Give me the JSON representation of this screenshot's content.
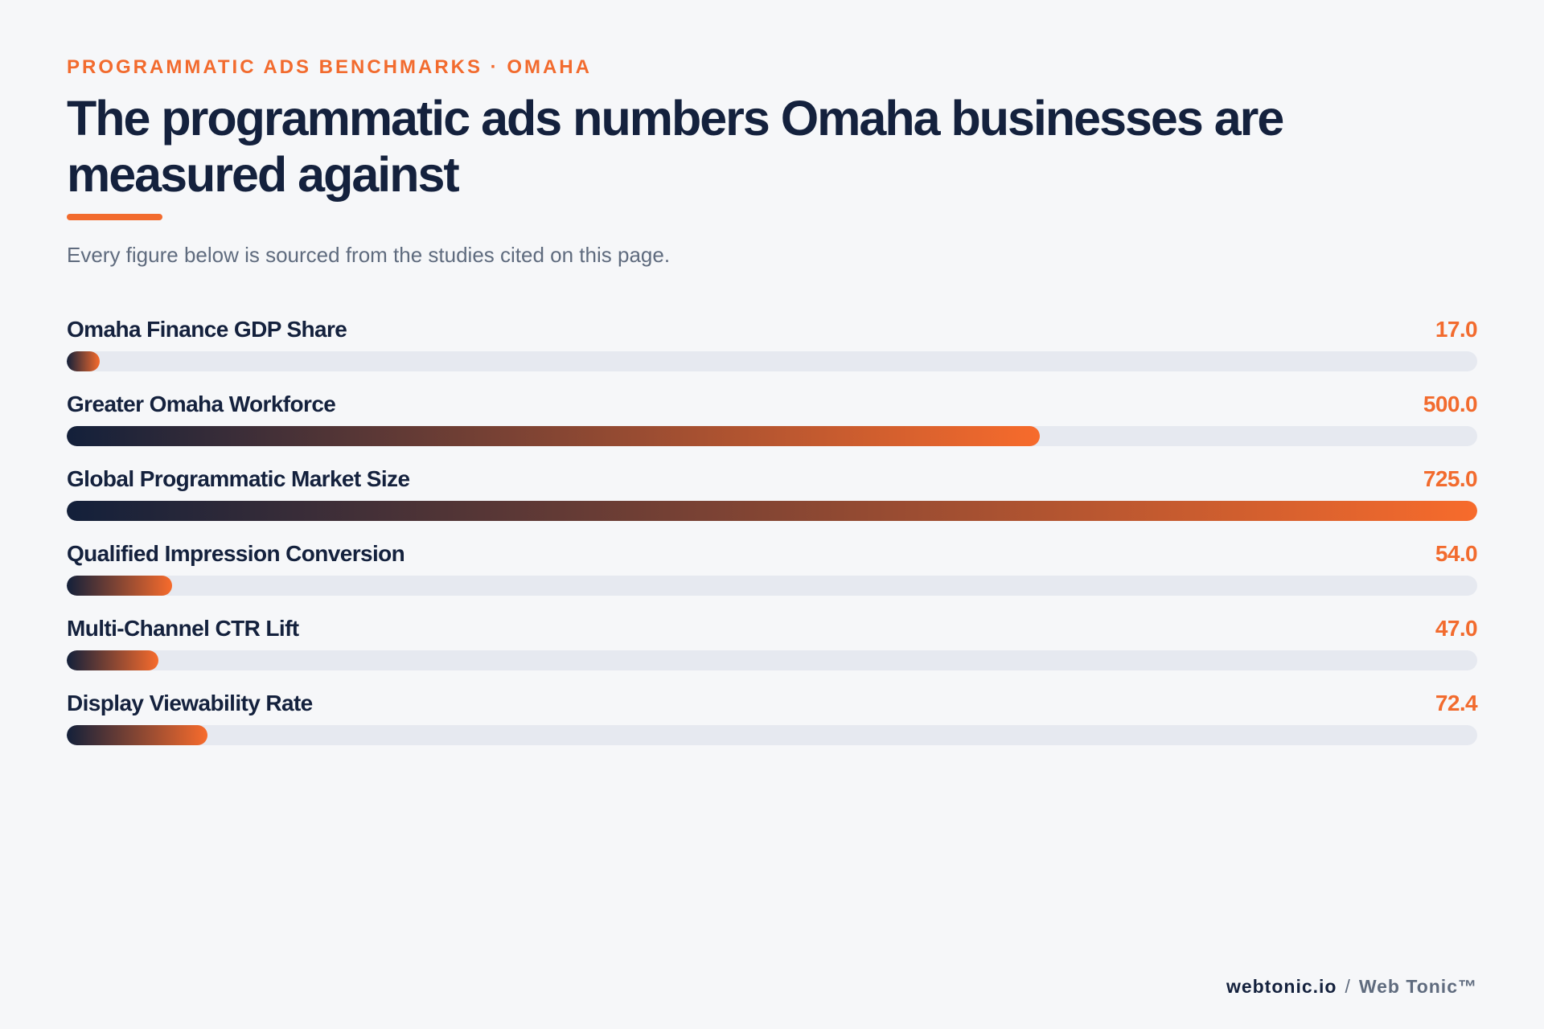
{
  "header": {
    "eyebrow": "PROGRAMMATIC ADS BENCHMARKS · OMAHA",
    "title": "The programmatic ads numbers Omaha businesses are measured against",
    "subtitle": "Every figure below is sourced from the studies cited on this page."
  },
  "chart_data": {
    "type": "bar",
    "orientation": "horizontal",
    "categories": [
      "Omaha Finance GDP Share",
      "Greater Omaha Workforce",
      "Global Programmatic Market Size",
      "Qualified Impression Conversion",
      "Multi-Channel CTR Lift",
      "Display Viewability Rate"
    ],
    "values": [
      17.0,
      500.0,
      725.0,
      54.0,
      47.0,
      72.4
    ],
    "value_labels": [
      "17.0",
      "500.0",
      "725.0",
      "54.0",
      "47.0",
      "72.4"
    ],
    "xlim": [
      0,
      725
    ],
    "grid": false,
    "legend": "none"
  },
  "colors": {
    "accent": "#f26b2e",
    "navy": "#14213d",
    "track": "#e6e9f0",
    "gradient_start": "#13203a",
    "gradient_end": "#f76b2c"
  },
  "footer": {
    "domain": "webtonic.io",
    "separator": "/",
    "brand": "Web Tonic™"
  }
}
